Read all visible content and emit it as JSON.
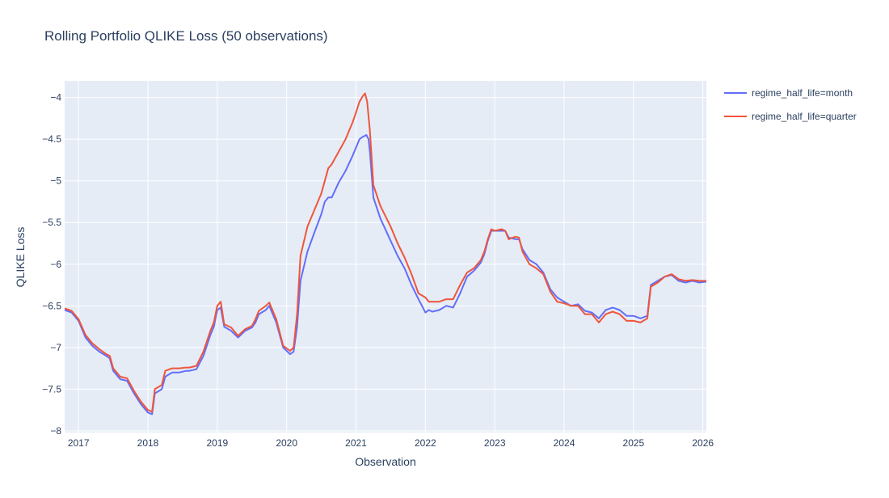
{
  "chart_data": {
    "type": "line",
    "title": "Rolling Portfolio QLIKE Loss (50 observations)",
    "xlabel": "Observation",
    "ylabel": "QLIKE Loss",
    "xlim": [
      2016.8,
      2026.05
    ],
    "ylim": [
      -8.02,
      -3.8
    ],
    "x_ticks": [
      {
        "value": 2017,
        "label": "2017"
      },
      {
        "value": 2018,
        "label": "2018"
      },
      {
        "value": 2019,
        "label": "2019"
      },
      {
        "value": 2020,
        "label": "2020"
      },
      {
        "value": 2021,
        "label": "2021"
      },
      {
        "value": 2022,
        "label": "2022"
      },
      {
        "value": 2023,
        "label": "2023"
      },
      {
        "value": 2024,
        "label": "2024"
      },
      {
        "value": 2025,
        "label": "2025"
      },
      {
        "value": 2026,
        "label": "2026"
      }
    ],
    "y_ticks": [
      {
        "value": -4,
        "label": "−4"
      },
      {
        "value": -4.5,
        "label": "−4.5"
      },
      {
        "value": -5,
        "label": "−5"
      },
      {
        "value": -5.5,
        "label": "−5.5"
      },
      {
        "value": -6,
        "label": "−6"
      },
      {
        "value": -6.5,
        "label": "−6.5"
      },
      {
        "value": -7,
        "label": "−7"
      },
      {
        "value": -7.5,
        "label": "−7.5"
      },
      {
        "value": -8,
        "label": "−8"
      }
    ],
    "grid": true,
    "legend_position": "top-right outside",
    "background": "#e5ecf6",
    "series": [
      {
        "name": "regime_half_life=month",
        "color": "#636efa",
        "points": [
          [
            2016.8,
            -6.55
          ],
          [
            2016.9,
            -6.58
          ],
          [
            2017.0,
            -6.68
          ],
          [
            2017.1,
            -6.88
          ],
          [
            2017.2,
            -6.98
          ],
          [
            2017.3,
            -7.05
          ],
          [
            2017.4,
            -7.1
          ],
          [
            2017.45,
            -7.13
          ],
          [
            2017.5,
            -7.28
          ],
          [
            2017.6,
            -7.38
          ],
          [
            2017.7,
            -7.4
          ],
          [
            2017.8,
            -7.55
          ],
          [
            2017.9,
            -7.68
          ],
          [
            2018.0,
            -7.78
          ],
          [
            2018.06,
            -7.8
          ],
          [
            2018.1,
            -7.55
          ],
          [
            2018.2,
            -7.5
          ],
          [
            2018.25,
            -7.35
          ],
          [
            2018.35,
            -7.3
          ],
          [
            2018.45,
            -7.3
          ],
          [
            2018.55,
            -7.28
          ],
          [
            2018.6,
            -7.28
          ],
          [
            2018.7,
            -7.26
          ],
          [
            2018.8,
            -7.1
          ],
          [
            2018.9,
            -6.85
          ],
          [
            2018.95,
            -6.75
          ],
          [
            2019.0,
            -6.55
          ],
          [
            2019.05,
            -6.52
          ],
          [
            2019.1,
            -6.75
          ],
          [
            2019.2,
            -6.8
          ],
          [
            2019.3,
            -6.88
          ],
          [
            2019.4,
            -6.8
          ],
          [
            2019.5,
            -6.76
          ],
          [
            2019.55,
            -6.7
          ],
          [
            2019.6,
            -6.6
          ],
          [
            2019.7,
            -6.55
          ],
          [
            2019.75,
            -6.5
          ],
          [
            2019.85,
            -6.7
          ],
          [
            2019.95,
            -7.0
          ],
          [
            2020.05,
            -7.08
          ],
          [
            2020.1,
            -7.05
          ],
          [
            2020.15,
            -6.75
          ],
          [
            2020.2,
            -6.2
          ],
          [
            2020.3,
            -5.85
          ],
          [
            2020.4,
            -5.62
          ],
          [
            2020.5,
            -5.4
          ],
          [
            2020.55,
            -5.25
          ],
          [
            2020.6,
            -5.2
          ],
          [
            2020.65,
            -5.2
          ],
          [
            2020.75,
            -5.02
          ],
          [
            2020.85,
            -4.88
          ],
          [
            2020.95,
            -4.7
          ],
          [
            2021.0,
            -4.6
          ],
          [
            2021.05,
            -4.5
          ],
          [
            2021.1,
            -4.47
          ],
          [
            2021.15,
            -4.45
          ],
          [
            2021.18,
            -4.5
          ],
          [
            2021.2,
            -4.65
          ],
          [
            2021.25,
            -5.2
          ],
          [
            2021.35,
            -5.45
          ],
          [
            2021.5,
            -5.72
          ],
          [
            2021.6,
            -5.9
          ],
          [
            2021.7,
            -6.05
          ],
          [
            2021.8,
            -6.25
          ],
          [
            2021.9,
            -6.42
          ],
          [
            2022.0,
            -6.58
          ],
          [
            2022.05,
            -6.55
          ],
          [
            2022.1,
            -6.57
          ],
          [
            2022.2,
            -6.55
          ],
          [
            2022.3,
            -6.5
          ],
          [
            2022.4,
            -6.52
          ],
          [
            2022.5,
            -6.35
          ],
          [
            2022.6,
            -6.15
          ],
          [
            2022.7,
            -6.08
          ],
          [
            2022.8,
            -5.98
          ],
          [
            2022.85,
            -5.88
          ],
          [
            2022.9,
            -5.72
          ],
          [
            2022.95,
            -5.6
          ],
          [
            2023.0,
            -5.6
          ],
          [
            2023.1,
            -5.6
          ],
          [
            2023.15,
            -5.6
          ],
          [
            2023.2,
            -5.68
          ],
          [
            2023.3,
            -5.7
          ],
          [
            2023.35,
            -5.7
          ],
          [
            2023.4,
            -5.82
          ],
          [
            2023.5,
            -5.95
          ],
          [
            2023.6,
            -6.0
          ],
          [
            2023.7,
            -6.1
          ],
          [
            2023.8,
            -6.3
          ],
          [
            2023.9,
            -6.4
          ],
          [
            2024.0,
            -6.45
          ],
          [
            2024.1,
            -6.5
          ],
          [
            2024.2,
            -6.48
          ],
          [
            2024.3,
            -6.56
          ],
          [
            2024.4,
            -6.58
          ],
          [
            2024.5,
            -6.65
          ],
          [
            2024.6,
            -6.55
          ],
          [
            2024.7,
            -6.52
          ],
          [
            2024.8,
            -6.55
          ],
          [
            2024.9,
            -6.62
          ],
          [
            2025.0,
            -6.62
          ],
          [
            2025.1,
            -6.65
          ],
          [
            2025.2,
            -6.62
          ],
          [
            2025.25,
            -6.25
          ],
          [
            2025.35,
            -6.2
          ],
          [
            2025.45,
            -6.15
          ],
          [
            2025.55,
            -6.13
          ],
          [
            2025.65,
            -6.2
          ],
          [
            2025.75,
            -6.22
          ],
          [
            2025.85,
            -6.2
          ],
          [
            2025.95,
            -6.22
          ],
          [
            2026.05,
            -6.21
          ]
        ]
      },
      {
        "name": "regime_half_life=quarter",
        "color": "#ef553b",
        "points": [
          [
            2016.8,
            -6.53
          ],
          [
            2016.9,
            -6.56
          ],
          [
            2017.0,
            -6.66
          ],
          [
            2017.1,
            -6.85
          ],
          [
            2017.2,
            -6.95
          ],
          [
            2017.3,
            -7.02
          ],
          [
            2017.4,
            -7.08
          ],
          [
            2017.45,
            -7.1
          ],
          [
            2017.5,
            -7.25
          ],
          [
            2017.6,
            -7.35
          ],
          [
            2017.7,
            -7.37
          ],
          [
            2017.8,
            -7.52
          ],
          [
            2017.9,
            -7.65
          ],
          [
            2018.0,
            -7.75
          ],
          [
            2018.06,
            -7.77
          ],
          [
            2018.1,
            -7.5
          ],
          [
            2018.2,
            -7.45
          ],
          [
            2018.25,
            -7.28
          ],
          [
            2018.35,
            -7.25
          ],
          [
            2018.45,
            -7.25
          ],
          [
            2018.55,
            -7.24
          ],
          [
            2018.6,
            -7.24
          ],
          [
            2018.7,
            -7.22
          ],
          [
            2018.8,
            -7.05
          ],
          [
            2018.9,
            -6.8
          ],
          [
            2018.95,
            -6.7
          ],
          [
            2019.0,
            -6.5
          ],
          [
            2019.05,
            -6.45
          ],
          [
            2019.1,
            -6.72
          ],
          [
            2019.2,
            -6.76
          ],
          [
            2019.3,
            -6.86
          ],
          [
            2019.4,
            -6.78
          ],
          [
            2019.5,
            -6.74
          ],
          [
            2019.55,
            -6.66
          ],
          [
            2019.6,
            -6.56
          ],
          [
            2019.7,
            -6.5
          ],
          [
            2019.75,
            -6.46
          ],
          [
            2019.85,
            -6.66
          ],
          [
            2019.95,
            -6.98
          ],
          [
            2020.05,
            -7.04
          ],
          [
            2020.1,
            -7.0
          ],
          [
            2020.15,
            -6.6
          ],
          [
            2020.2,
            -5.9
          ],
          [
            2020.3,
            -5.55
          ],
          [
            2020.4,
            -5.35
          ],
          [
            2020.5,
            -5.15
          ],
          [
            2020.55,
            -5.0
          ],
          [
            2020.6,
            -4.85
          ],
          [
            2020.65,
            -4.8
          ],
          [
            2020.75,
            -4.65
          ],
          [
            2020.85,
            -4.5
          ],
          [
            2020.95,
            -4.3
          ],
          [
            2021.0,
            -4.18
          ],
          [
            2021.05,
            -4.05
          ],
          [
            2021.1,
            -3.98
          ],
          [
            2021.13,
            -3.95
          ],
          [
            2021.16,
            -4.05
          ],
          [
            2021.2,
            -4.4
          ],
          [
            2021.25,
            -5.05
          ],
          [
            2021.35,
            -5.3
          ],
          [
            2021.5,
            -5.55
          ],
          [
            2021.6,
            -5.75
          ],
          [
            2021.7,
            -5.92
          ],
          [
            2021.8,
            -6.12
          ],
          [
            2021.9,
            -6.35
          ],
          [
            2022.0,
            -6.4
          ],
          [
            2022.05,
            -6.45
          ],
          [
            2022.1,
            -6.45
          ],
          [
            2022.2,
            -6.45
          ],
          [
            2022.3,
            -6.42
          ],
          [
            2022.4,
            -6.42
          ],
          [
            2022.5,
            -6.25
          ],
          [
            2022.6,
            -6.1
          ],
          [
            2022.7,
            -6.05
          ],
          [
            2022.8,
            -5.95
          ],
          [
            2022.85,
            -5.85
          ],
          [
            2022.9,
            -5.7
          ],
          [
            2022.95,
            -5.58
          ],
          [
            2023.0,
            -5.6
          ],
          [
            2023.1,
            -5.58
          ],
          [
            2023.15,
            -5.6
          ],
          [
            2023.2,
            -5.7
          ],
          [
            2023.3,
            -5.67
          ],
          [
            2023.35,
            -5.68
          ],
          [
            2023.4,
            -5.85
          ],
          [
            2023.5,
            -6.0
          ],
          [
            2023.6,
            -6.05
          ],
          [
            2023.7,
            -6.12
          ],
          [
            2023.8,
            -6.33
          ],
          [
            2023.9,
            -6.45
          ],
          [
            2024.0,
            -6.47
          ],
          [
            2024.1,
            -6.5
          ],
          [
            2024.2,
            -6.5
          ],
          [
            2024.3,
            -6.6
          ],
          [
            2024.4,
            -6.6
          ],
          [
            2024.5,
            -6.7
          ],
          [
            2024.6,
            -6.6
          ],
          [
            2024.7,
            -6.57
          ],
          [
            2024.8,
            -6.6
          ],
          [
            2024.9,
            -6.68
          ],
          [
            2025.0,
            -6.68
          ],
          [
            2025.1,
            -6.7
          ],
          [
            2025.2,
            -6.65
          ],
          [
            2025.25,
            -6.27
          ],
          [
            2025.35,
            -6.22
          ],
          [
            2025.45,
            -6.15
          ],
          [
            2025.55,
            -6.12
          ],
          [
            2025.65,
            -6.18
          ],
          [
            2025.75,
            -6.2
          ],
          [
            2025.85,
            -6.19
          ],
          [
            2025.95,
            -6.2
          ],
          [
            2026.05,
            -6.2
          ]
        ]
      }
    ]
  }
}
